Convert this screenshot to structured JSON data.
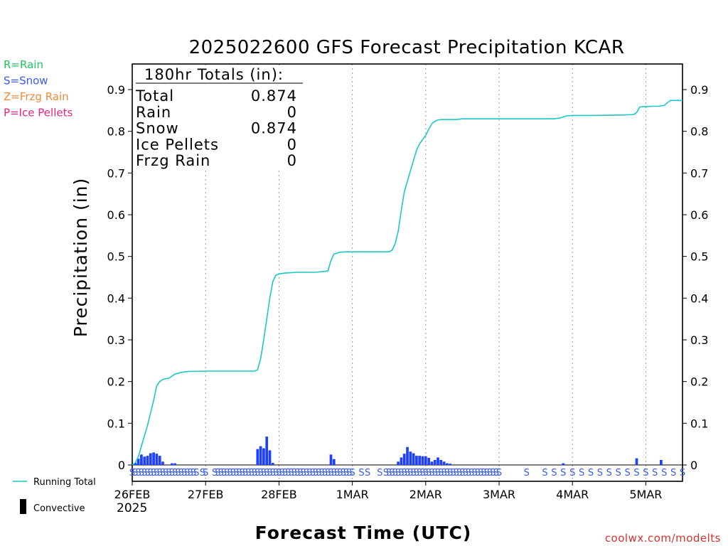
{
  "chart_data": {
    "type": "bar",
    "title": "2025022600 GFS Forecast Precipitation KCAR",
    "xlabel": "Forecast Time (UTC)",
    "ylabel": "Precipitation (in)",
    "year_label": "2025",
    "credit": "coolwx.com/modelts",
    "ylim": [
      0,
      0.96
    ],
    "y_ticks": [
      0,
      0.1,
      0.2,
      0.3,
      0.4,
      0.5,
      0.6,
      0.7,
      0.8,
      0.9
    ],
    "y_tick_labels": [
      "0",
      "0.1",
      "0.2",
      "0.3",
      "0.4",
      "0.5",
      "0.6",
      "0.7",
      "0.8",
      "0.9"
    ],
    "xlim_hours": [
      0,
      180
    ],
    "x_ticks": [
      {
        "hour": 0,
        "label": "26FEB"
      },
      {
        "hour": 24,
        "label": "27FEB"
      },
      {
        "hour": 48,
        "label": "28FEB"
      },
      {
        "hour": 72,
        "label": "1MAR"
      },
      {
        "hour": 96,
        "label": "2MAR"
      },
      {
        "hour": 120,
        "label": "3MAR"
      },
      {
        "hour": 144,
        "label": "4MAR"
      },
      {
        "hour": 168,
        "label": "5MAR"
      }
    ],
    "grid": "dotted vertical at day boundaries",
    "precip_type_legend": [
      {
        "label": "R=Rain",
        "color": "#22c55e"
      },
      {
        "label": "S=Snow",
        "color": "#3a5cf0"
      },
      {
        "label": "Z=Frzg Rain",
        "color": "#f08a3a"
      },
      {
        "label": "P=Ice Pellets",
        "color": "#e8237e"
      }
    ],
    "series_legend": [
      {
        "label": "Running Total",
        "color": "#1cc8c8"
      },
      {
        "label": "Convective",
        "color": "#000000"
      }
    ],
    "totals_box": {
      "heading": "180hr Totals (in):",
      "rows": [
        {
          "label": "Total",
          "value": "0.874"
        },
        {
          "label": "Rain",
          "value": "0"
        },
        {
          "label": "Snow",
          "value": "0.874"
        },
        {
          "label": "Ice Pellets",
          "value": "0"
        },
        {
          "label": "Frzg Rain",
          "value": "0"
        }
      ]
    },
    "series": [
      {
        "name": "Running Total",
        "type": "line",
        "color": "#1cc8c8",
        "x": [
          0,
          1,
          2,
          3,
          4,
          5,
          6,
          7,
          8,
          9,
          10,
          11,
          12,
          14,
          16,
          18,
          24,
          30,
          36,
          40,
          41,
          42,
          43,
          44,
          45,
          46,
          47,
          48,
          50,
          54,
          60,
          64,
          65,
          66,
          67,
          68,
          70,
          72,
          84,
          85,
          86,
          87,
          88,
          89,
          90,
          91,
          92,
          93,
          94,
          95,
          96,
          97,
          98,
          99,
          100,
          101,
          102,
          103,
          104,
          106,
          108,
          120,
          132,
          138,
          140,
          142,
          144,
          150,
          160,
          164,
          165,
          166,
          167,
          168,
          170,
          172,
          174,
          176,
          180
        ],
        "values": [
          0.0,
          0.005,
          0.02,
          0.045,
          0.07,
          0.095,
          0.125,
          0.155,
          0.19,
          0.2,
          0.205,
          0.207,
          0.208,
          0.218,
          0.222,
          0.224,
          0.225,
          0.225,
          0.225,
          0.225,
          0.228,
          0.255,
          0.3,
          0.35,
          0.4,
          0.44,
          0.455,
          0.458,
          0.46,
          0.462,
          0.462,
          0.465,
          0.49,
          0.506,
          0.508,
          0.51,
          0.511,
          0.511,
          0.511,
          0.515,
          0.53,
          0.56,
          0.61,
          0.655,
          0.68,
          0.705,
          0.73,
          0.755,
          0.77,
          0.78,
          0.79,
          0.805,
          0.818,
          0.824,
          0.827,
          0.828,
          0.828,
          0.828,
          0.828,
          0.828,
          0.83,
          0.83,
          0.83,
          0.83,
          0.832,
          0.837,
          0.838,
          0.838,
          0.839,
          0.84,
          0.845,
          0.858,
          0.859,
          0.859,
          0.86,
          0.86,
          0.862,
          0.874,
          0.874
        ]
      },
      {
        "name": "Convective",
        "type": "bar",
        "color": "#1e40ff",
        "x": [
          1,
          2,
          3,
          4,
          5,
          6,
          7,
          8,
          9,
          10,
          13,
          14,
          41,
          42,
          43,
          44,
          45,
          46,
          65,
          66,
          87,
          88,
          89,
          90,
          91,
          92,
          93,
          94,
          95,
          96,
          97,
          98,
          99,
          100,
          101,
          102,
          103,
          104,
          141,
          165,
          173
        ],
        "values": [
          0.005,
          0.015,
          0.025,
          0.02,
          0.022,
          0.028,
          0.03,
          0.027,
          0.022,
          0.008,
          0.004,
          0.004,
          0.038,
          0.045,
          0.04,
          0.068,
          0.035,
          0.005,
          0.025,
          0.014,
          0.008,
          0.018,
          0.027,
          0.043,
          0.032,
          0.028,
          0.022,
          0.022,
          0.021,
          0.021,
          0.017,
          0.008,
          0.012,
          0.018,
          0.012,
          0.008,
          0.004,
          0.003,
          0.004,
          0.016,
          0.012
        ]
      }
    ],
    "precip_type_codes": {
      "symbol": "S",
      "color": "#3a5cf0",
      "hours": [
        0,
        1,
        2,
        3,
        4,
        5,
        6,
        7,
        8,
        9,
        10,
        11,
        12,
        13,
        14,
        15,
        16,
        17,
        18,
        19,
        20,
        21,
        23,
        24,
        27,
        28,
        29,
        30,
        31,
        32,
        33,
        34,
        35,
        36,
        37,
        38,
        39,
        40,
        41,
        42,
        43,
        44,
        45,
        46,
        47,
        48,
        49,
        50,
        51,
        52,
        53,
        54,
        55,
        56,
        57,
        58,
        59,
        60,
        61,
        62,
        63,
        64,
        65,
        66,
        67,
        68,
        69,
        70,
        71,
        72,
        75,
        77,
        81,
        83,
        84,
        85,
        86,
        87,
        88,
        89,
        90,
        91,
        92,
        93,
        94,
        95,
        96,
        97,
        98,
        99,
        100,
        101,
        102,
        103,
        104,
        105,
        106,
        107,
        108,
        109,
        110,
        111,
        112,
        113,
        114,
        115,
        116,
        117,
        118,
        119,
        120,
        129,
        135,
        138,
        141,
        144,
        147,
        150,
        153,
        156,
        159,
        162,
        165,
        168,
        171,
        174,
        177,
        180
      ]
    }
  }
}
